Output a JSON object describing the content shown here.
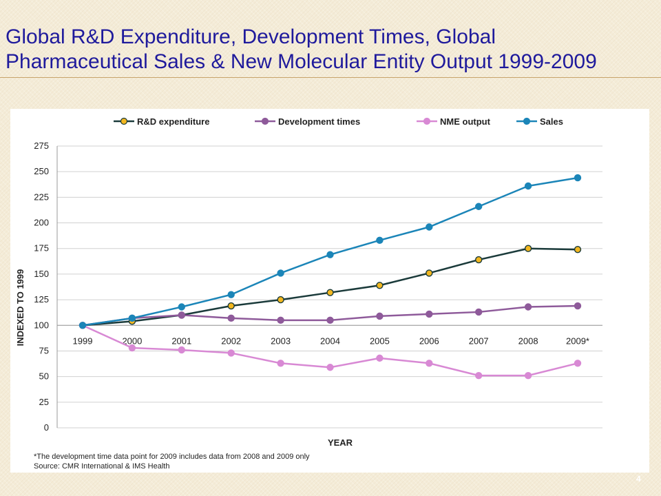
{
  "slide": {
    "title_line1": "Global R&D Expenditure, Development Times, Global",
    "title_line2": "Pharmaceutical Sales & New Molecular Entity Output 1999-2009",
    "footnote": "*The development time data point for 2009 includes data from 2008 and 2009 only",
    "source": "Source: CMR International & IMS Health",
    "page_number": "4"
  },
  "chart_data": {
    "type": "line",
    "title": "",
    "xlabel": "YEAR",
    "ylabel": "INDEXED TO 1999",
    "categories": [
      "1999",
      "2000",
      "2001",
      "2002",
      "2003",
      "2004",
      "2005",
      "2006",
      "2007",
      "2008",
      "2009*"
    ],
    "ylim": [
      0,
      275
    ],
    "yticks": [
      0,
      25,
      50,
      75,
      100,
      125,
      150,
      175,
      200,
      225,
      250,
      275
    ],
    "grid": true,
    "legend_position": "top",
    "series": [
      {
        "name": "R&D expenditure",
        "color": "#1a3a3a",
        "marker_fill": "#f2b720",
        "values": [
          100,
          104,
          110,
          119,
          125,
          132,
          139,
          151,
          164,
          175,
          174
        ]
      },
      {
        "name": "Development times",
        "color": "#8e5a9a",
        "marker_fill": "#8e5a9a",
        "values": [
          100,
          107,
          110,
          107,
          105,
          105,
          109,
          111,
          113,
          118,
          119
        ]
      },
      {
        "name": "NME output",
        "color": "#d889d4",
        "marker_fill": "#d889d4",
        "values": [
          100,
          78,
          76,
          73,
          63,
          59,
          68,
          63,
          51,
          51,
          63
        ]
      },
      {
        "name": "Sales",
        "color": "#1b85b8",
        "marker_fill": "#1b85b8",
        "values": [
          100,
          107,
          118,
          130,
          151,
          169,
          183,
          196,
          216,
          236,
          244
        ]
      }
    ]
  }
}
